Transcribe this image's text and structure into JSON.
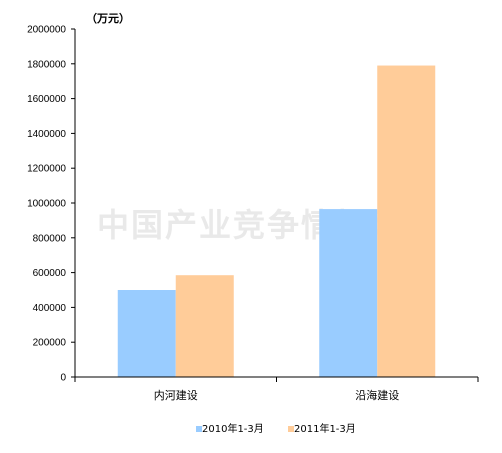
{
  "chart_data": {
    "type": "bar",
    "unit_label": "（万元）",
    "categories": [
      "内河建设",
      "沿海建设"
    ],
    "series": [
      {
        "name": "2010年1-3月",
        "color": "#99ccff",
        "values": [
          500000,
          965000
        ]
      },
      {
        "name": "2011年1-3月",
        "color": "#ffcc99",
        "values": [
          585000,
          1790000
        ]
      }
    ],
    "ylim": [
      0,
      2000000
    ],
    "yticks": [
      0,
      200000,
      400000,
      600000,
      800000,
      1000000,
      1200000,
      1400000,
      1600000,
      1800000,
      2000000
    ],
    "grid": false,
    "legend_position": "bottom"
  },
  "watermark": "中国产业竞争情报网"
}
